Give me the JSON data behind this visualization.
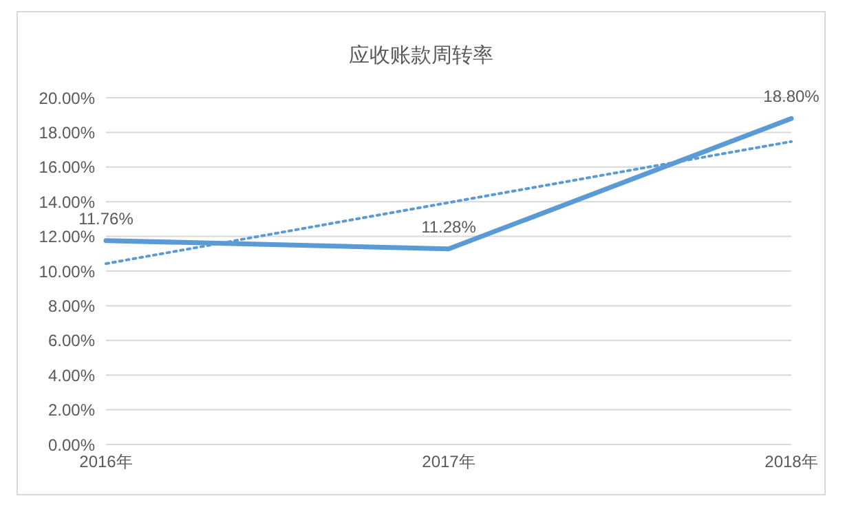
{
  "chart_data": {
    "type": "line",
    "title": "应收账款周转率",
    "categories": [
      "2016年",
      "2017年",
      "2018年"
    ],
    "series": [
      {
        "color": "#5b9bd5",
        "values": [
          11.76,
          11.28,
          18.8
        ],
        "value_labels": [
          "11.76%",
          "11.28%",
          "18.80%"
        ],
        "line_style": "solid"
      },
      {
        "color": "#5b9bd5",
        "values": [
          10.43,
          13.95,
          17.47
        ],
        "line_style": "dotted"
      }
    ],
    "ylim": [
      0,
      20
    ],
    "yticks": [
      {
        "value": 0,
        "label": "0.00%"
      },
      {
        "value": 2,
        "label": "2.00%"
      },
      {
        "value": 4,
        "label": "4.00%"
      },
      {
        "value": 6,
        "label": "6.00%"
      },
      {
        "value": 8,
        "label": "8.00%"
      },
      {
        "value": 10,
        "label": "10.00%"
      },
      {
        "value": 12,
        "label": "12.00%"
      },
      {
        "value": 14,
        "label": "14.00%"
      },
      {
        "value": 16,
        "label": "16.00%"
      },
      {
        "value": 18,
        "label": "18.00%"
      },
      {
        "value": 20,
        "label": "20.00%"
      }
    ],
    "grid": "y",
    "legend": false,
    "marker": "none"
  }
}
